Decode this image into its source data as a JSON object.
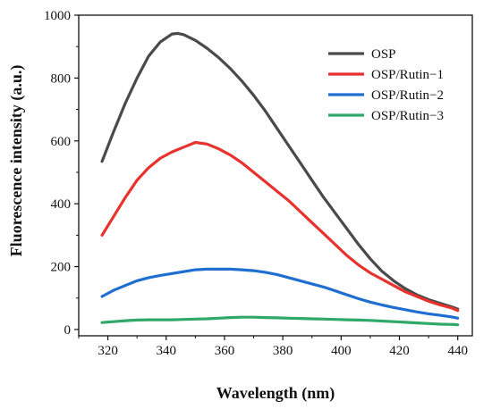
{
  "chart_data": {
    "type": "line",
    "xlabel": "Wavelength (nm)",
    "ylabel": "Fluorescence intensity (a.u.)",
    "xlim": [
      310,
      445
    ],
    "ylim": [
      -20,
      1000
    ],
    "xticks": [
      320,
      340,
      360,
      380,
      400,
      420,
      440
    ],
    "yticks": [
      0,
      200,
      400,
      600,
      800,
      1000
    ],
    "grid": false,
    "legend_position": "top-right",
    "series": [
      {
        "name": "OSP",
        "color": "#4a4a4a",
        "x": [
          318,
          322,
          326,
          330,
          334,
          338,
          342,
          344,
          346,
          350,
          354,
          358,
          362,
          366,
          370,
          374,
          378,
          382,
          386,
          390,
          394,
          398,
          402,
          406,
          410,
          414,
          418,
          422,
          426,
          430,
          434,
          438,
          440
        ],
        "y": [
          535,
          630,
          720,
          800,
          870,
          915,
          940,
          942,
          938,
          920,
          895,
          865,
          830,
          790,
          745,
          695,
          640,
          585,
          530,
          475,
          420,
          370,
          320,
          270,
          225,
          185,
          155,
          130,
          110,
          95,
          83,
          72,
          65
        ]
      },
      {
        "name": "OSP/Rutin−1",
        "color": "#e8322e",
        "x": [
          318,
          322,
          326,
          330,
          334,
          338,
          342,
          346,
          350,
          354,
          358,
          362,
          366,
          370,
          374,
          378,
          382,
          386,
          390,
          394,
          398,
          402,
          406,
          410,
          414,
          418,
          422,
          426,
          430,
          434,
          438,
          440
        ],
        "y": [
          300,
          360,
          420,
          475,
          515,
          545,
          565,
          580,
          595,
          590,
          575,
          555,
          530,
          500,
          470,
          440,
          410,
          375,
          340,
          305,
          270,
          235,
          205,
          180,
          160,
          140,
          120,
          105,
          90,
          78,
          68,
          60
        ]
      },
      {
        "name": "OSP/Rutin−2",
        "color": "#1f6fd1",
        "x": [
          318,
          322,
          326,
          330,
          334,
          338,
          342,
          346,
          350,
          354,
          358,
          362,
          366,
          370,
          374,
          378,
          382,
          386,
          390,
          394,
          398,
          402,
          406,
          410,
          414,
          418,
          422,
          426,
          430,
          434,
          438,
          440
        ],
        "y": [
          105,
          125,
          140,
          155,
          165,
          172,
          178,
          184,
          190,
          192,
          192,
          192,
          190,
          187,
          182,
          175,
          165,
          155,
          145,
          135,
          123,
          110,
          98,
          87,
          78,
          70,
          63,
          56,
          50,
          45,
          40,
          36
        ]
      },
      {
        "name": "OSP/Rutin−3",
        "color": "#2fa86a",
        "x": [
          318,
          322,
          326,
          330,
          334,
          338,
          342,
          346,
          350,
          354,
          358,
          362,
          366,
          370,
          374,
          378,
          382,
          386,
          390,
          394,
          398,
          402,
          406,
          410,
          414,
          418,
          422,
          426,
          430,
          434,
          438,
          440
        ],
        "y": [
          22,
          25,
          28,
          30,
          31,
          31,
          31,
          32,
          33,
          34,
          36,
          38,
          39,
          39,
          38,
          37,
          36,
          35,
          34,
          33,
          32,
          31,
          30,
          29,
          27,
          25,
          23,
          21,
          19,
          17,
          16,
          15
        ]
      }
    ]
  }
}
